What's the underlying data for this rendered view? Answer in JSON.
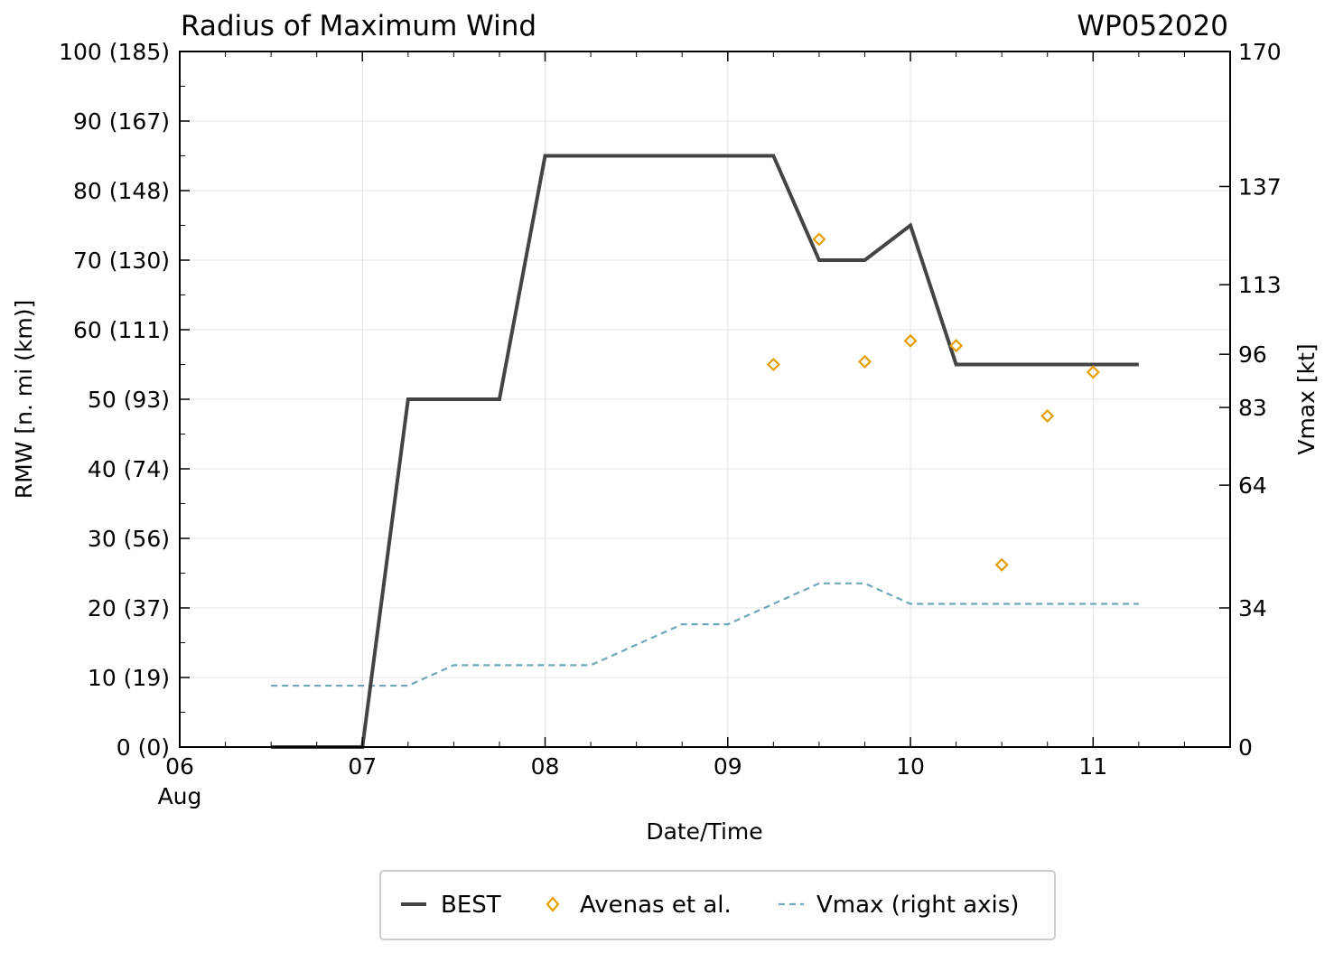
{
  "chart_data": {
    "type": "line",
    "title": "Radius of Maximum Wind",
    "title_right": "WP052020",
    "xlabel": "Date/Time",
    "ylabel": "RMW [n. mi (km)]",
    "y2label": "Vmax [kt]",
    "xlim": [
      0,
      5.75
    ],
    "ylim": [
      0,
      100
    ],
    "y2lim": [
      0,
      170
    ],
    "x_ticks": [
      {
        "x": 0,
        "label": "06",
        "sublabel": "Aug"
      },
      {
        "x": 1,
        "label": "07"
      },
      {
        "x": 2,
        "label": "08"
      },
      {
        "x": 3,
        "label": "09"
      },
      {
        "x": 4,
        "label": "10"
      },
      {
        "x": 5,
        "label": "11"
      }
    ],
    "y_ticks": [
      {
        "y": 0,
        "label": "0 (0)"
      },
      {
        "y": 10,
        "label": "10 (19)"
      },
      {
        "y": 20,
        "label": "20 (37)"
      },
      {
        "y": 30,
        "label": "30 (56)"
      },
      {
        "y": 40,
        "label": "40 (74)"
      },
      {
        "y": 50,
        "label": "50 (93)"
      },
      {
        "y": 60,
        "label": "60 (111)"
      },
      {
        "y": 70,
        "label": "70 (130)"
      },
      {
        "y": 80,
        "label": "80 (148)"
      },
      {
        "y": 90,
        "label": "90 (167)"
      },
      {
        "y": 100,
        "label": "100 (185)"
      }
    ],
    "y2_ticks": [
      {
        "y": 0,
        "label": "0"
      },
      {
        "y": 34,
        "label": "34"
      },
      {
        "y": 64,
        "label": "64"
      },
      {
        "y": 83,
        "label": "83"
      },
      {
        "y": 96,
        "label": "96"
      },
      {
        "y": 113,
        "label": "113"
      },
      {
        "y": 137,
        "label": "137"
      },
      {
        "y": 170,
        "label": "170"
      }
    ],
    "series": [
      {
        "name": "BEST",
        "type": "line",
        "axis": "left",
        "color": "#444444",
        "x": [
          0.5,
          0.75,
          1.0,
          1.25,
          1.5,
          1.75,
          2.0,
          2.25,
          2.5,
          2.75,
          3.0,
          3.25,
          3.5,
          3.75,
          4.0,
          4.25,
          4.5,
          4.75,
          5.0,
          5.25
        ],
        "values": [
          0,
          0,
          0,
          50,
          50,
          50,
          85,
          85,
          85,
          85,
          85,
          85,
          70,
          70,
          75,
          55,
          55,
          55,
          55,
          55
        ]
      },
      {
        "name": "Avenas et al.",
        "type": "scatter",
        "axis": "left",
        "color": "#e69f00",
        "x": [
          3.25,
          3.5,
          3.75,
          4.0,
          4.25,
          4.5,
          4.75,
          5.0
        ],
        "values": [
          55,
          73,
          55.4,
          58.4,
          57.7,
          26.2,
          47.6,
          53.9
        ]
      },
      {
        "name": "Vmax (right axis)",
        "type": "line",
        "axis": "right",
        "color": "#6fa8b8",
        "x": [
          0.5,
          0.75,
          1.0,
          1.25,
          1.5,
          1.75,
          2.0,
          2.25,
          2.5,
          2.75,
          3.0,
          3.25,
          3.5,
          3.75,
          4.0,
          4.25,
          4.5,
          4.75,
          5.0,
          5.25
        ],
        "values": [
          15,
          15,
          15,
          15,
          20,
          20,
          20,
          20,
          25,
          30,
          30,
          35,
          40,
          40,
          35,
          35,
          35,
          35,
          35,
          35
        ]
      }
    ],
    "legend": {
      "position": "bottom-center",
      "entries": [
        "BEST",
        "Avenas et al.",
        "Vmax (right axis)"
      ]
    },
    "grid": true
  }
}
